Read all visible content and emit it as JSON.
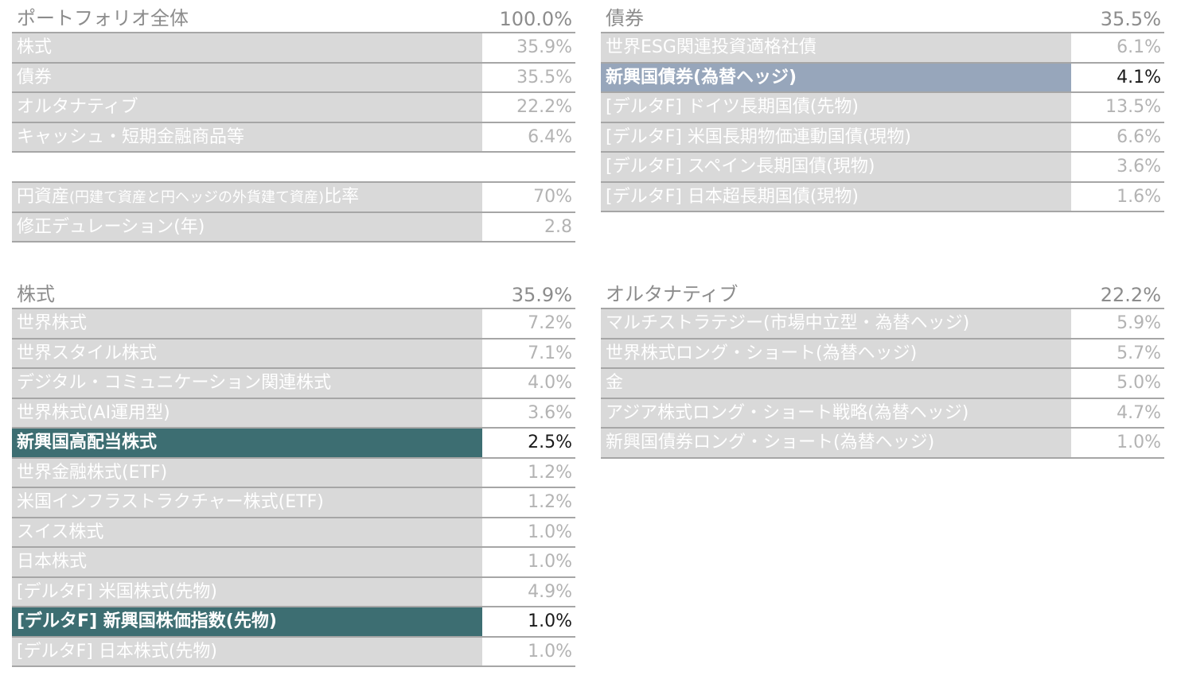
{
  "portfolio": {
    "title": "ポートフォリオ全体",
    "total": "100.0%",
    "rows": [
      {
        "label": "株式",
        "value": "35.9%"
      },
      {
        "label": "債券",
        "value": "35.5%"
      },
      {
        "label": "オルタナティブ",
        "value": "22.2%"
      },
      {
        "label": "キャッシュ・短期金融商品等",
        "value": "6.4%"
      }
    ],
    "extra": [
      {
        "label_main": "円資産",
        "label_note": "(円建て資産と円ヘッジの外貨建て資産)",
        "label_tail": "比率",
        "value": "70%"
      },
      {
        "label_main": "修正デュレーション(年)",
        "label_note": "",
        "label_tail": "",
        "value": "2.8"
      }
    ]
  },
  "bonds": {
    "title": "債券",
    "total": "35.5%",
    "rows": [
      {
        "label": "世界ESG関連投資適格社債",
        "value": "6.1%"
      },
      {
        "label": "新興国債券(為替ヘッジ)",
        "value": "4.1%"
      },
      {
        "label": "[デルタF] ドイツ長期国債(先物)",
        "value": "13.5%"
      },
      {
        "label": "[デルタF] 米国長期物価連動国債(現物)",
        "value": "6.6%"
      },
      {
        "label": "[デルタF] スペイン長期国債(現物)",
        "value": "3.6%"
      },
      {
        "label": "[デルタF] 日本超長期国債(現物)",
        "value": "1.6%"
      }
    ]
  },
  "equities": {
    "title": "株式",
    "total": "35.9%",
    "rows": [
      {
        "label": "世界株式",
        "value": "7.2%"
      },
      {
        "label": "世界スタイル株式",
        "value": "7.1%"
      },
      {
        "label": "デジタル・コミュニケーション関連株式",
        "value": "4.0%"
      },
      {
        "label": "世界株式(AI運用型)",
        "value": "3.6%"
      },
      {
        "label": "新興国高配当株式",
        "value": "2.5%"
      },
      {
        "label": "世界金融株式(ETF)",
        "value": "1.2%"
      },
      {
        "label": "米国インフラストラクチャー株式(ETF)",
        "value": "1.2%"
      },
      {
        "label": "スイス株式",
        "value": "1.0%"
      },
      {
        "label": "日本株式",
        "value": "1.0%"
      },
      {
        "label": "[デルタF] 米国株式(先物)",
        "value": "4.9%"
      },
      {
        "label": "[デルタF] 新興国株価指数(先物)",
        "value": "1.0%"
      },
      {
        "label": "[デルタF] 日本株式(先物)",
        "value": "1.0%"
      }
    ]
  },
  "alternatives": {
    "title": "オルタナティブ",
    "total": "22.2%",
    "rows": [
      {
        "label": "マルチストラテジー(市場中立型・為替ヘッジ)",
        "value": "5.9%"
      },
      {
        "label": "世界株式ロング・ショート(為替ヘッジ)",
        "value": "5.7%"
      },
      {
        "label": "金",
        "value": "5.0%"
      },
      {
        "label": "アジア株式ロング・ショート戦略(為替ヘッジ)",
        "value": "4.7%"
      },
      {
        "label": "新興国債券ロング・ショート(為替ヘッジ)",
        "value": "1.0%"
      }
    ]
  },
  "colors": {
    "highlight_teal": "#3d6e72",
    "highlight_blue": "#97a6bb",
    "label_bg": "#d9d9d9"
  }
}
